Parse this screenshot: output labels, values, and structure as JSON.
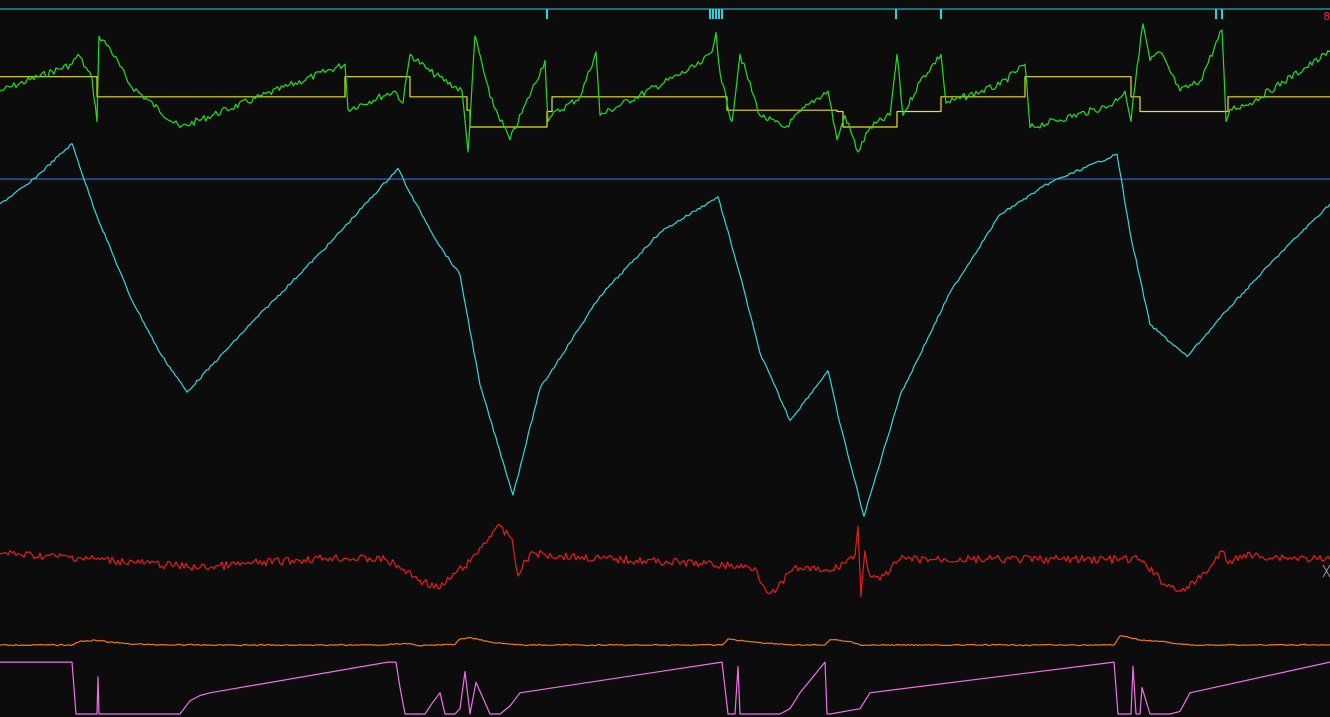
{
  "corner_label": "8",
  "chart_data": {
    "type": "line",
    "title": "",
    "xlabel": "",
    "ylabel": "",
    "grid": false,
    "legend": "none",
    "x_range": [
      0,
      1330
    ],
    "lanes": [
      {
        "name": "",
        "color": "#20d8e0",
        "kind": "event-markers",
        "baseline": 0,
        "events": [
          547,
          710,
          713,
          716,
          719,
          722,
          896,
          941,
          1216,
          1222
        ]
      },
      {
        "name": "",
        "color": "#e6e020",
        "kind": "step",
        "y_range": [
          0,
          100
        ],
        "x": [
          0,
          97,
          97,
          345,
          345,
          410,
          410,
          467,
          467,
          470,
          470,
          547,
          547,
          552,
          552,
          596,
          596,
          727,
          727,
          837,
          837,
          843,
          843,
          897,
          897,
          941,
          941,
          1025,
          1025,
          1131,
          1131,
          1140,
          1140,
          1228,
          1228,
          1330
        ],
        "values": [
          90,
          90,
          60,
          60,
          90,
          90,
          60,
          60,
          40,
          40,
          15,
          15,
          38,
          38,
          60,
          60,
          60,
          60,
          40,
          40,
          38,
          38,
          15,
          15,
          38,
          38,
          60,
          60,
          90,
          90,
          60,
          60,
          38,
          38,
          60,
          60
        ]
      },
      {
        "name": "",
        "color": "#20e020",
        "kind": "line",
        "y_range": [
          0,
          100
        ],
        "x": [
          0,
          72,
          78,
          92,
          97,
          99,
          110,
          130,
          180,
          345,
          348,
          395,
          403,
          410,
          430,
          462,
          468,
          475,
          490,
          510,
          545,
          548,
          552,
          580,
          596,
          600,
          700,
          712,
          716,
          720,
          727,
          732,
          740,
          760,
          785,
          810,
          828,
          837,
          845,
          858,
          870,
          890,
          897,
          903,
          920,
          941,
          946,
          1000,
          1025,
          1030,
          1110,
          1125,
          1131,
          1137,
          1143,
          1150,
          1160,
          1180,
          1200,
          1222,
          1226,
          1230,
          1250,
          1330
        ],
        "values": [
          50,
          72,
          80,
          60,
          25,
          95,
          85,
          55,
          20,
          72,
          35,
          50,
          40,
          80,
          66,
          50,
          0,
          95,
          45,
          10,
          75,
          25,
          30,
          45,
          82,
          30,
          72,
          82,
          98,
          65,
          40,
          25,
          80,
          30,
          20,
          40,
          50,
          10,
          30,
          0,
          20,
          30,
          80,
          30,
          58,
          80,
          40,
          55,
          72,
          20,
          38,
          50,
          25,
          70,
          105,
          75,
          82,
          50,
          58,
          100,
          25,
          35,
          40,
          82
        ]
      },
      {
        "name": "",
        "color": "#30d8e0",
        "kind": "line",
        "y_range": [
          0,
          100
        ],
        "reference_level": 89,
        "reference_color": "#2a70e0",
        "x": [
          0,
          30,
          72,
          95,
          130,
          160,
          187,
          250,
          330,
          398,
          410,
          440,
          460,
          480,
          513,
          540,
          600,
          660,
          718,
          740,
          760,
          790,
          828,
          840,
          864,
          900,
          950,
          1000,
          1050,
          1117,
          1130,
          1150,
          1187,
          1230,
          1280,
          1330
        ],
        "values": [
          82,
          88,
          99,
          80,
          56,
          40,
          29,
          48,
          71,
          92,
          85,
          70,
          62,
          31,
          0,
          30,
          56,
          74,
          84,
          62,
          40,
          21,
          35,
          20,
          -6,
          28,
          57,
          79,
          88,
          96,
          74,
          48,
          39,
          53,
          68,
          82
        ]
      },
      {
        "name": "",
        "color": "#e81c1c",
        "kind": "line",
        "y_range": [
          0,
          100
        ],
        "x": [
          0,
          80,
          150,
          200,
          250,
          330,
          385,
          400,
          420,
          440,
          455,
          470,
          497,
          512,
          518,
          530,
          600,
          700,
          755,
          765,
          775,
          790,
          800,
          830,
          855,
          858,
          861,
          865,
          870,
          880,
          900,
          1000,
          1140,
          1165,
          1185,
          1210,
          1222,
          1228,
          1240,
          1330
        ],
        "values": [
          62,
          57,
          50,
          45,
          50,
          57,
          55,
          45,
          30,
          20,
          38,
          52,
          95,
          80,
          35,
          62,
          56,
          50,
          45,
          20,
          15,
          40,
          45,
          40,
          60,
          95,
          10,
          65,
          35,
          30,
          55,
          55,
          55,
          25,
          17,
          45,
          65,
          50,
          60,
          55
        ]
      },
      {
        "name": "",
        "color": "#f07820",
        "kind": "line",
        "y_range": [
          0,
          100
        ],
        "x": [
          0,
          72,
          80,
          95,
          120,
          150,
          210,
          388,
          395,
          410,
          418,
          455,
          460,
          470,
          490,
          520,
          722,
          728,
          740,
          760,
          795,
          825,
          830,
          850,
          860,
          1114,
          1120,
          1140,
          1160,
          1190,
          1330
        ],
        "values": [
          50,
          50,
          62,
          66,
          56,
          51,
          50,
          50,
          54,
          55,
          48,
          52,
          70,
          75,
          60,
          50,
          50,
          70,
          65,
          58,
          50,
          50,
          68,
          62,
          50,
          50,
          80,
          67,
          62,
          50,
          50
        ]
      },
      {
        "name": "",
        "color": "#ee70e8",
        "kind": "line",
        "y_range": [
          0,
          100
        ],
        "x": [
          0,
          72,
          76,
          97,
          98,
          99,
          100,
          180,
          190,
          200,
          210,
          388,
          396,
          400,
          405,
          410,
          425,
          432,
          440,
          445,
          455,
          460,
          465,
          470,
          476,
          490,
          500,
          510,
          520,
          722,
          728,
          735,
          738,
          740,
          742,
          780,
          790,
          800,
          825,
          827,
          830,
          860,
          870,
          1114,
          1118,
          1125,
          1131,
          1133,
          1136,
          1140,
          1142,
          1150,
          1170,
          1180,
          1190,
          1330
        ],
        "values": [
          98,
          98,
          0,
          0,
          70,
          0,
          0,
          0,
          25,
          35,
          40,
          98,
          98,
          50,
          0,
          0,
          0,
          20,
          40,
          0,
          0,
          10,
          80,
          0,
          60,
          0,
          0,
          15,
          40,
          98,
          0,
          0,
          90,
          0,
          0,
          0,
          10,
          40,
          98,
          0,
          0,
          10,
          40,
          98,
          0,
          0,
          0,
          90,
          0,
          0,
          50,
          0,
          0,
          5,
          40,
          98
        ]
      }
    ]
  }
}
